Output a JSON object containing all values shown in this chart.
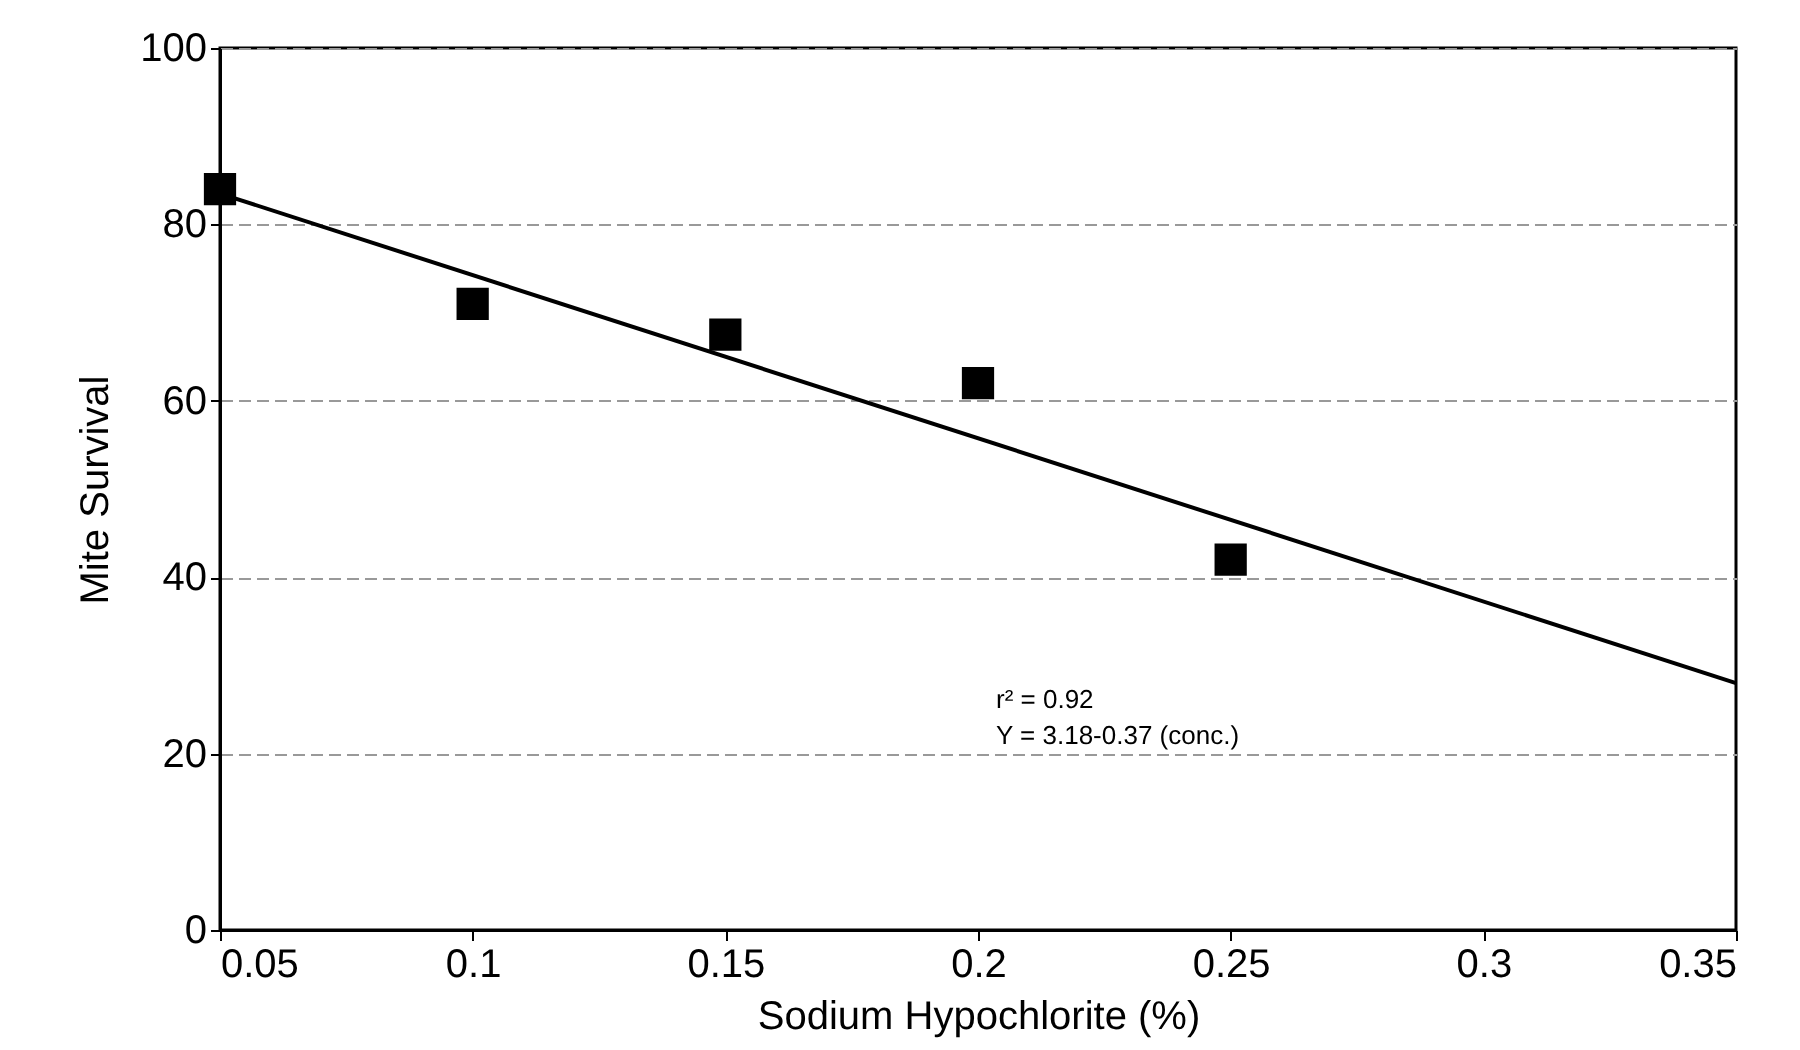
{
  "chart_data": {
    "type": "scatter",
    "xlabel": "Sodium Hypochlorite (%)",
    "ylabel": "Mite Survival",
    "xlim": [
      0.05,
      0.35
    ],
    "xticks": [
      0.05,
      0.1,
      0.15,
      0.2,
      0.25,
      0.3,
      0.35
    ],
    "ylim": [
      0,
      100
    ],
    "yticks": [
      0,
      20,
      40,
      60,
      80,
      100
    ],
    "grid": "y",
    "annotations": [
      "r² = 0.92",
      "Y = 3.18-0.37 (conc.)"
    ],
    "series": [
      {
        "marker": "square",
        "color": "#000000",
        "x": [
          0.05,
          0.1,
          0.15,
          0.2,
          0.25
        ],
        "values": [
          84,
          71,
          67.5,
          62,
          42
        ]
      },
      {
        "type": "line",
        "line_style": "solid",
        "color": "#000000",
        "x": [
          0.05,
          0.35
        ],
        "values": [
          83.5,
          28
        ]
      }
    ]
  }
}
